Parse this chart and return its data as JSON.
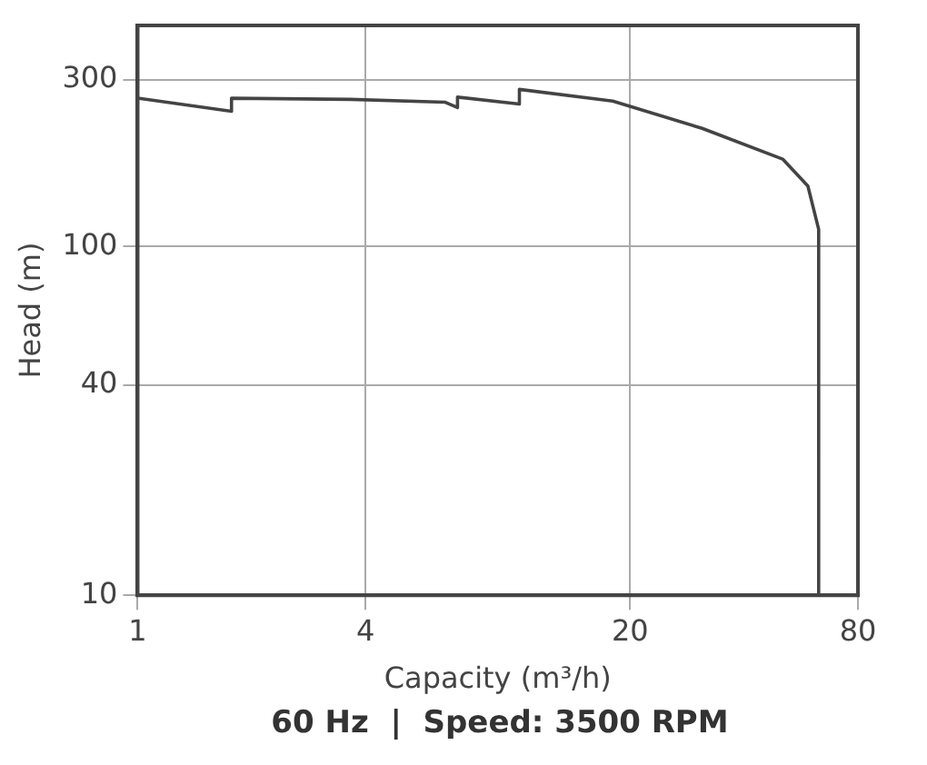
{
  "chart_data": {
    "type": "line",
    "xlabel": "Capacity (m³/h)",
    "ylabel": "Head (m)",
    "log": "xy",
    "xlim": [
      1,
      80
    ],
    "ylim": [
      10,
      430
    ],
    "xticks": [
      1,
      4,
      20,
      80
    ],
    "yticks": [
      10,
      40,
      100,
      300
    ],
    "grid": true,
    "marker": "none",
    "line_style": "solid",
    "series": [
      {
        "color": "#444444",
        "x": [
          1,
          1.77,
          1.77,
          3.65,
          6.5,
          7.0,
          7.0,
          10.2,
          10.2,
          18,
          31,
          50.6,
          59,
          63,
          63
        ],
        "values": [
          266,
          244,
          266,
          264,
          259,
          250,
          268,
          256,
          282,
          261,
          218,
          178,
          149,
          112,
          10
        ]
      }
    ],
    "annotations": [
      "60 Hz  |  Speed: 3500 RPM"
    ]
  }
}
